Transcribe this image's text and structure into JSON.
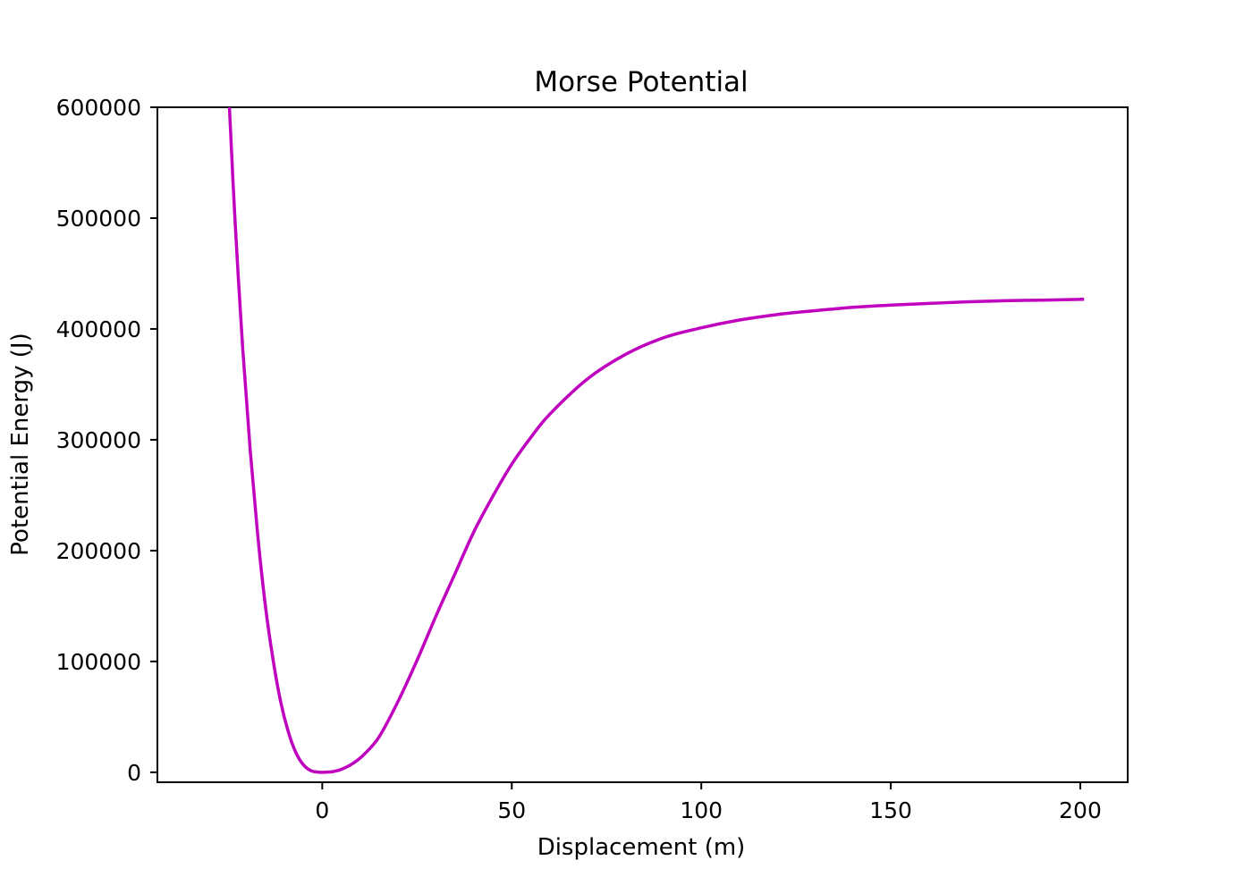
{
  "chart_data": {
    "type": "line",
    "title": "Morse Potential",
    "xlabel": "Displacement (m)",
    "ylabel": "Potential Energy (J)",
    "xlim": [
      -43.5,
      212.5
    ],
    "ylim": [
      -9000,
      600000
    ],
    "x_ticks": [
      0,
      50,
      100,
      150,
      200
    ],
    "y_ticks": [
      0,
      100000,
      200000,
      300000,
      400000,
      500000,
      600000
    ],
    "x_tick_labels": [
      "0",
      "50",
      "100",
      "150",
      "200"
    ],
    "y_tick_labels": [
      "0",
      "100000",
      "200000",
      "300000",
      "400000",
      "500000",
      "600000"
    ],
    "grid": false,
    "legend": "none",
    "series": [
      {
        "color": "#bf00bf",
        "x": [
          -24.5,
          -23,
          -21,
          -19,
          -17,
          -15,
          -13,
          -11,
          -9,
          -7,
          -5,
          -3,
          -1,
          0,
          1,
          3,
          5,
          8,
          11,
          15,
          20,
          25,
          30,
          35,
          40,
          45,
          50,
          55,
          60,
          70,
          80,
          90,
          100,
          110,
          120,
          130,
          140,
          150,
          160,
          170,
          180,
          190,
          201
        ],
        "y": [
          600000,
          497000,
          383000,
          290000,
          213000,
          150000,
          102000,
          64000,
          37000,
          18000,
          6800,
          1400,
          105,
          0,
          100,
          700,
          2600,
          7800,
          16000,
          32000,
          64000,
          101000,
          141000,
          179000,
          217000,
          249000,
          278000,
          302000,
          323000,
          355000,
          377000,
          392000,
          401000,
          408000,
          413000,
          416500,
          419500,
          421500,
          423000,
          424500,
          425500,
          426000,
          426800
        ]
      }
    ]
  }
}
